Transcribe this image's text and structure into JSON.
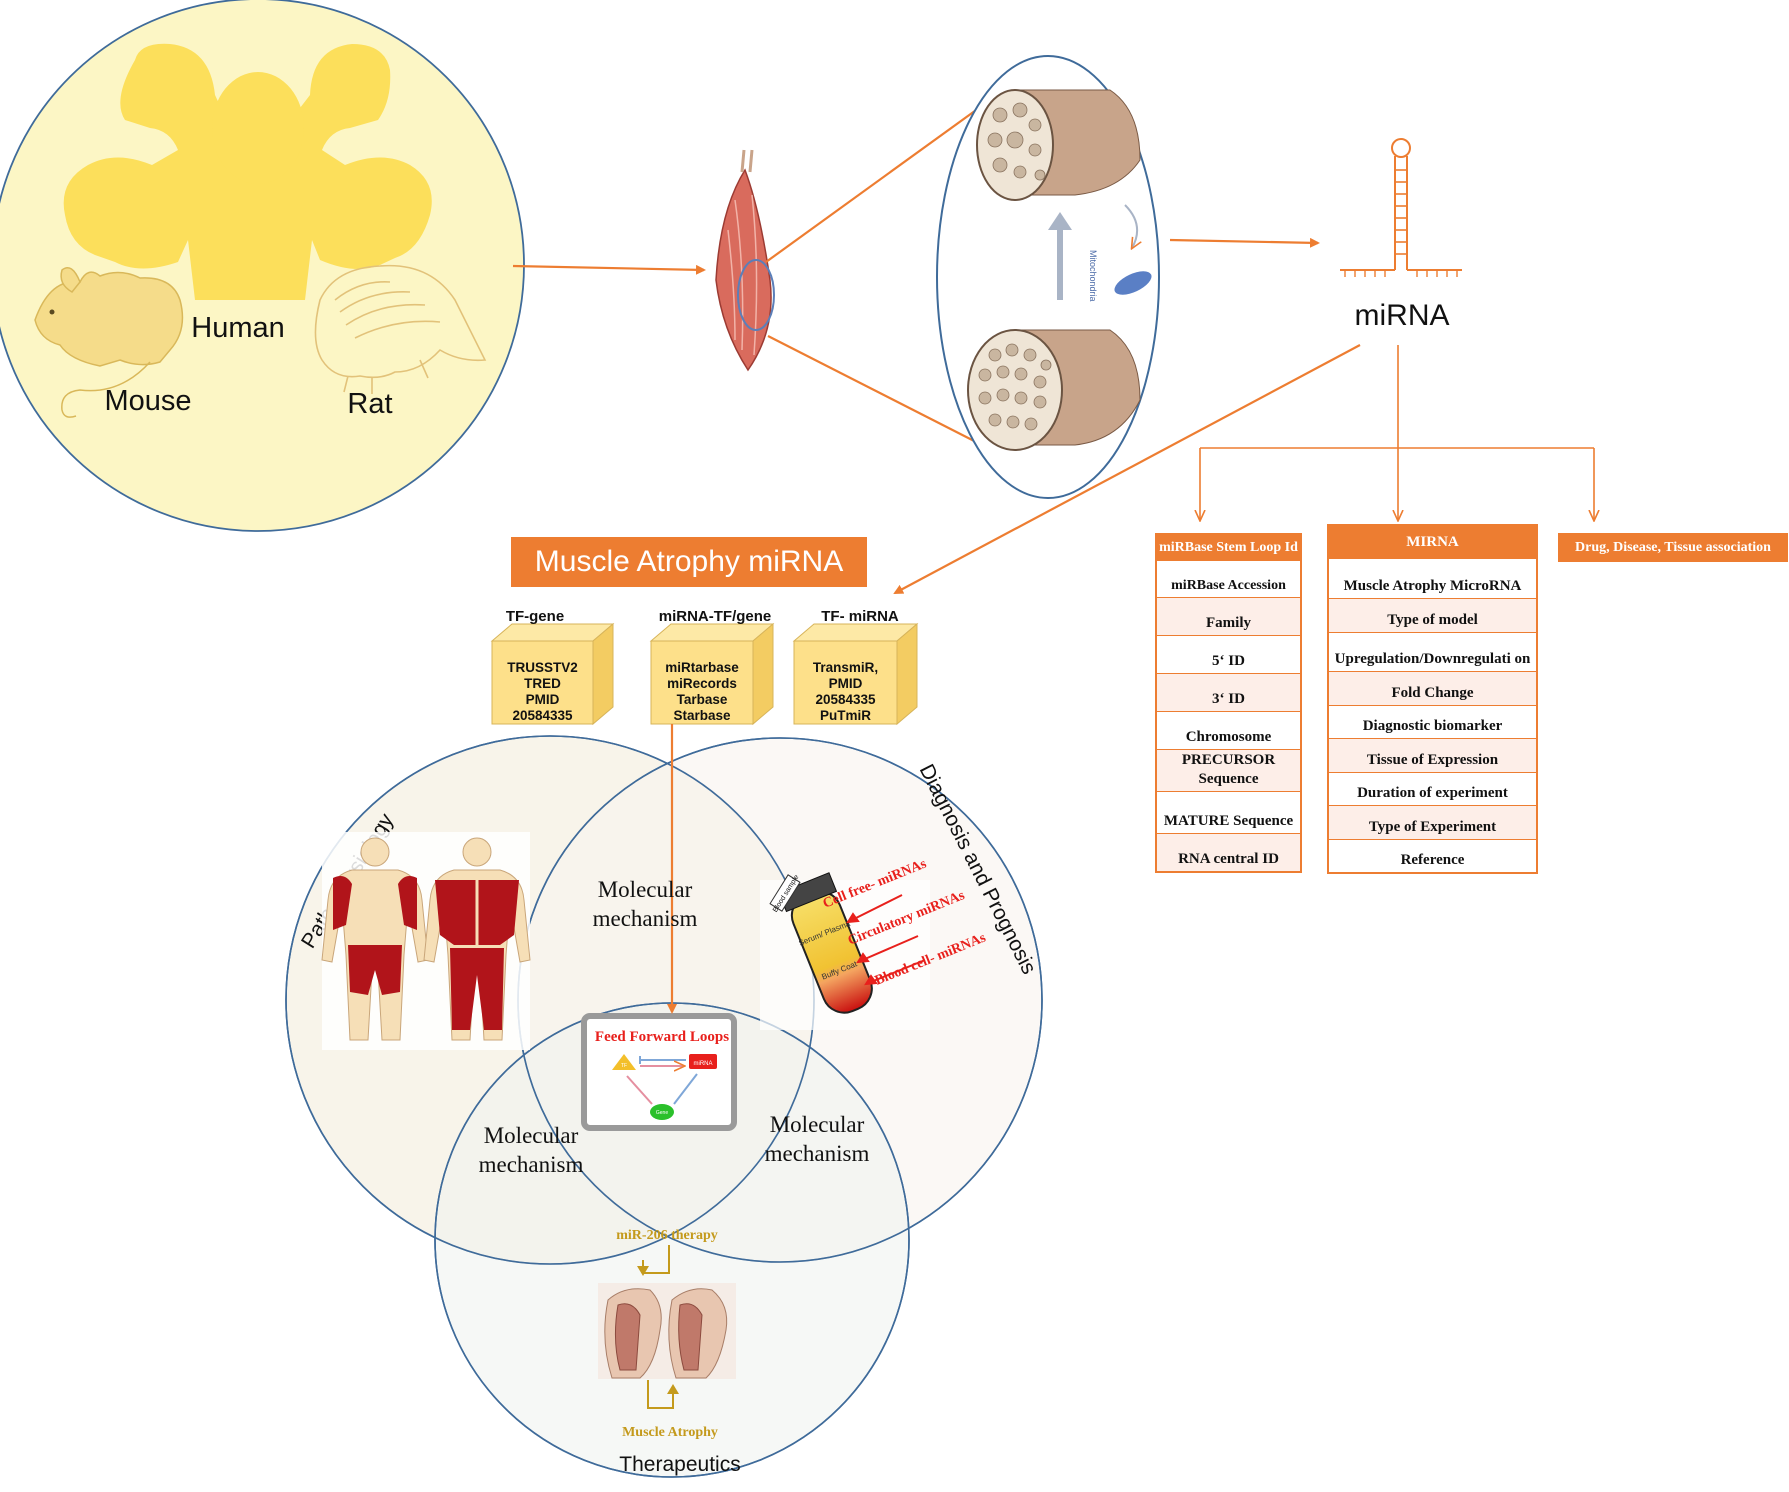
{
  "species": {
    "human": "Human",
    "mouse": "Mouse",
    "rat": "Rat"
  },
  "mito_label": "Mitochondria",
  "mirna_label": "miRNA",
  "title": "Muscle Atrophy miRNA",
  "db_columns": [
    {
      "header": "TF-gene",
      "lines": [
        "TRUSSTV2",
        "TRED",
        "PMID",
        "20584335"
      ]
    },
    {
      "header": "miRNA-TF/gene",
      "lines": [
        "miRtarbase",
        "miRecords",
        "Tarbase",
        "Starbase"
      ]
    },
    {
      "header": "TF- miRNA",
      "lines": [
        "TransmiR,",
        "PMID",
        "20584335",
        "PuTmiR"
      ]
    }
  ],
  "tables": {
    "stemloop": {
      "header": "miRBase Stem Loop Id",
      "rows": [
        "miRBase Accession",
        "Family",
        "5‘ ID",
        "3‘ ID",
        "Chromosome",
        "PRECURSOR Sequence",
        "MATURE Sequence",
        "RNA central ID"
      ]
    },
    "mirna": {
      "header": "MIRNA",
      "rows": [
        "Muscle Atrophy MicroRNA",
        "Type of model",
        "Upregulation/Downregulati on",
        "Fold Change",
        "Diagnostic biomarker",
        "Tissue of Expression",
        "Duration of experiment",
        "Type of Experiment",
        "Reference"
      ]
    },
    "drug": {
      "header": "Drug, Disease, Tissue association"
    }
  },
  "venn": {
    "pathophysiology": "Pathophysiology",
    "diagnosis": "Diagnosis and Prognosis",
    "therapeutics": "Therapeutics",
    "mol_top": "Molecular mechanism",
    "mol_left": "Molecular mechanism",
    "mol_right": "Molecular mechanism"
  },
  "ffl": {
    "title": "Feed Forward Loops",
    "tf": "TF",
    "mirna": "miRNA",
    "gene": "Gene"
  },
  "blood": {
    "tube_label": "Blood sample",
    "serum": "Serum/ Plasma",
    "buffy": "Buffy Coat",
    "arrows": [
      "Cell free- miRNAs",
      "Circulatory miRNAs",
      "Blood cell- miRNAs"
    ]
  },
  "therapy": {
    "top": "miR-206 therapy",
    "bottom": "Muscle Atrophy"
  },
  "colors": {
    "orange": "#ed7d31",
    "circle_blue": "#3f6b9a",
    "yellow_bg": "#fcf6c5",
    "silhouette": "#fcdf5b",
    "red": "#e8201c",
    "olive": "#c49a1c"
  }
}
